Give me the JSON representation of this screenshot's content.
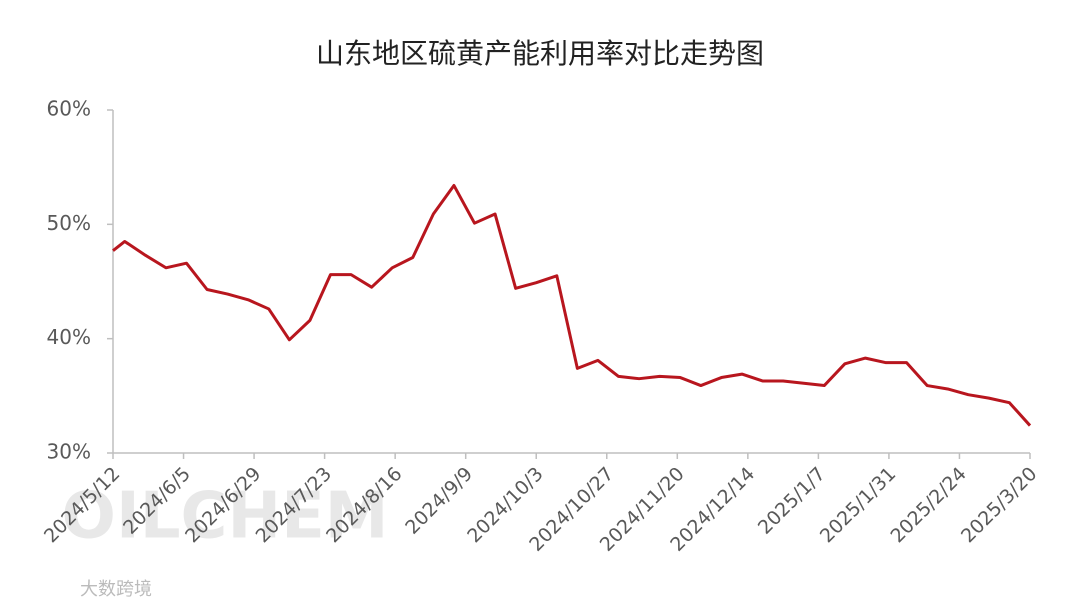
{
  "chart_data": {
    "type": "line",
    "title": "山东地区硫黄产能利用率对比走势图",
    "watermark": "OILCHEM",
    "source": "大数跨境",
    "x": [
      "2024/5/12",
      "2024/5/16",
      "2024/5/23",
      "2024/5/30",
      "2024/6/6",
      "2024/6/13",
      "2024/6/20",
      "2024/6/27",
      "2024/7/4",
      "2024/7/11",
      "2024/7/18",
      "2024/7/25",
      "2024/8/1",
      "2024/8/8",
      "2024/8/15",
      "2024/8/22",
      "2024/8/29",
      "2024/9/5",
      "2024/9/12",
      "2024/9/19",
      "2024/9/26",
      "2024/10/3",
      "2024/10/10",
      "2024/10/17",
      "2024/10/24",
      "2024/10/31",
      "2024/11/7",
      "2024/11/14",
      "2024/11/21",
      "2024/11/28",
      "2024/12/5",
      "2024/12/12",
      "2024/12/19",
      "2024/12/26",
      "2025/1/2",
      "2025/1/9",
      "2025/1/16",
      "2025/1/23",
      "2025/1/30",
      "2025/2/6",
      "2025/2/13",
      "2025/2/20",
      "2025/2/27",
      "2025/3/6",
      "2025/3/13",
      "2025/3/20"
    ],
    "series": [
      {
        "name": "产能利用率",
        "color": "#b8161e",
        "values": [
          47.7,
          48.5,
          47.3,
          46.2,
          46.6,
          44.3,
          43.9,
          43.4,
          42.6,
          39.9,
          41.6,
          45.6,
          45.6,
          44.5,
          46.2,
          47.1,
          50.9,
          53.4,
          50.1,
          50.9,
          44.4,
          44.9,
          45.5,
          37.4,
          38.1,
          36.7,
          36.5,
          36.7,
          36.6,
          35.9,
          36.6,
          36.9,
          36.3,
          36.3,
          36.1,
          35.9,
          37.8,
          38.3,
          37.9,
          37.9,
          35.9,
          35.6,
          35.1,
          34.8,
          34.4,
          32.4
        ]
      }
    ],
    "xlim": [
      "2024/5/12",
      "2025/3/20"
    ],
    "xticks": [
      "2024/5/12",
      "2024/6/5",
      "2024/6/29",
      "2024/7/23",
      "2024/8/16",
      "2024/9/9",
      "2024/10/3",
      "2024/10/27",
      "2024/11/20",
      "2024/12/14",
      "2025/1/7",
      "2025/1/31",
      "2025/2/24",
      "2025/3/20"
    ],
    "ylim": [
      30,
      60
    ],
    "yticks": [
      {
        "value": 30,
        "label": "30%"
      },
      {
        "value": 40,
        "label": "40%"
      },
      {
        "value": 50,
        "label": "50%"
      },
      {
        "value": 60,
        "label": "60%"
      }
    ],
    "grid": false
  }
}
